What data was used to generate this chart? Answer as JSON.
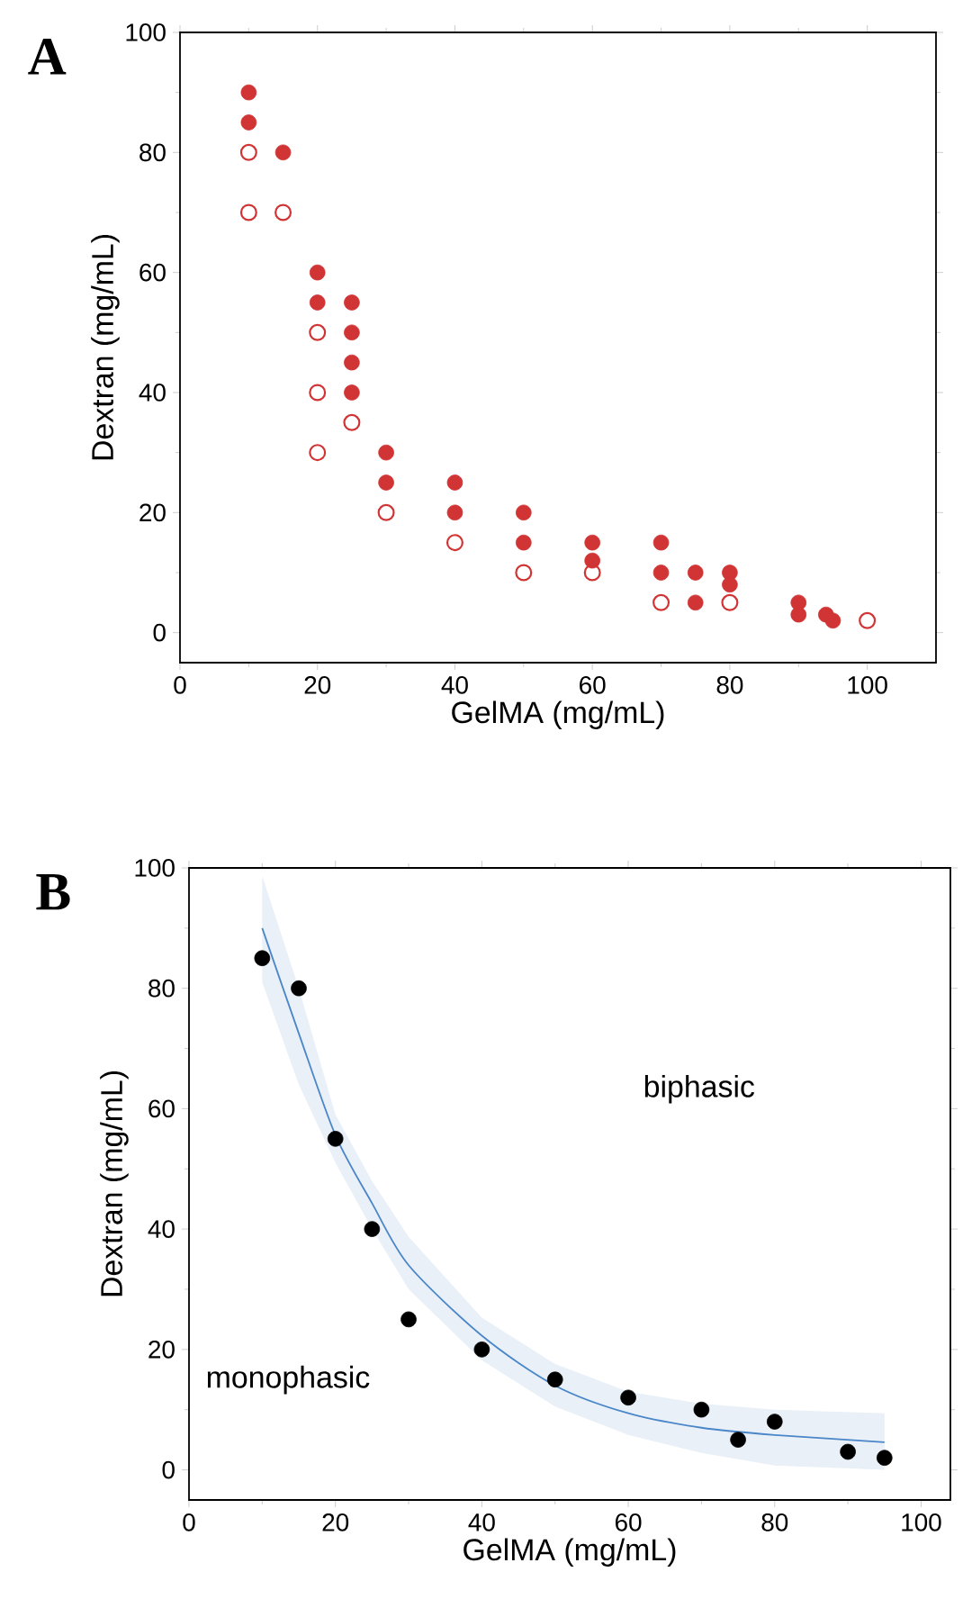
{
  "chart_data": [
    {
      "type": "scatter",
      "xlabel": "GelMA (mg/mL)",
      "ylabel": "Dextran (mg/mL)",
      "annotations": [
        "A"
      ],
      "xlim": [
        0,
        110
      ],
      "ylim": [
        -5,
        100
      ],
      "xticks": [
        0,
        20,
        40,
        60,
        80,
        100
      ],
      "yticks": [
        0,
        20,
        40,
        60,
        80,
        100
      ],
      "marker": "circle",
      "series": [
        {
          "color": "#d03434",
          "x": [
            10,
            10,
            15,
            20,
            20,
            25,
            25,
            25,
            25,
            30,
            30,
            40,
            40,
            50,
            50,
            60,
            60,
            70,
            70,
            75,
            75,
            80,
            80,
            90,
            90,
            94,
            95
          ],
          "values": [
            90,
            85,
            80,
            60,
            55,
            55,
            50,
            45,
            40,
            30,
            25,
            25,
            20,
            20,
            15,
            15,
            12,
            15,
            10,
            10,
            5,
            10,
            8,
            5,
            3,
            3,
            2
          ]
        },
        {
          "color": "#d03434",
          "x": [
            10,
            10,
            15,
            20,
            20,
            20,
            25,
            30,
            40,
            50,
            60,
            70,
            80,
            100
          ],
          "values": [
            80,
            70,
            70,
            50,
            40,
            30,
            35,
            20,
            15,
            10,
            10,
            5,
            5,
            2
          ]
        }
      ]
    },
    {
      "type": "scatter",
      "xlabel": "GelMA (mg/mL)",
      "ylabel": "Dextran (mg/mL)",
      "annotations": [
        "B",
        "biphasic",
        "monophasic"
      ],
      "xlim": [
        0,
        104
      ],
      "ylim": [
        -5,
        100
      ],
      "xticks": [
        0,
        20,
        40,
        60,
        80,
        100
      ],
      "yticks": [
        0,
        20,
        40,
        60,
        80,
        100
      ],
      "marker": "circle",
      "series": [
        {
          "type": "line",
          "marker": "none",
          "line_style": "solid",
          "color": "#4a86c8",
          "x": [
            10,
            15,
            20,
            25,
            30,
            40,
            50,
            60,
            70,
            80,
            95
          ],
          "values": [
            90,
            72.5,
            55.6,
            44.3,
            34,
            22.3,
            14,
            9.4,
            7,
            5.8,
            4.6
          ],
          "lower": [
            81,
            64,
            51,
            40,
            30,
            18.2,
            10.5,
            5.8,
            2.8,
            0.7,
            0
          ],
          "upper": [
            98.7,
            80,
            59,
            48,
            38.7,
            25.3,
            17.6,
            13,
            11,
            10,
            9.4
          ]
        },
        {
          "color": "#000000",
          "x": [
            10,
            15,
            20,
            25,
            30,
            40,
            50,
            60,
            70,
            75,
            80,
            90,
            95
          ],
          "values": [
            85,
            80,
            55,
            40,
            25,
            20,
            15,
            12,
            10,
            5,
            8,
            3,
            2
          ]
        }
      ]
    }
  ]
}
